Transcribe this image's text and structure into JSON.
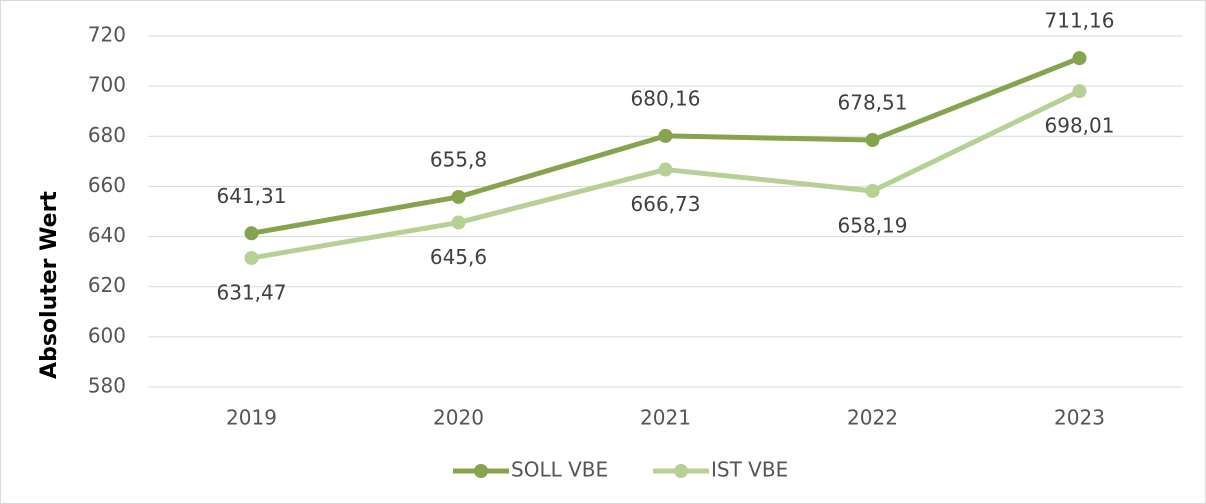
{
  "chart_data": {
    "type": "line",
    "y_axis_label": "Absoluter Wert",
    "categories": [
      "2019",
      "2020",
      "2021",
      "2022",
      "2023"
    ],
    "series": [
      {
        "name": "SOLL VBE",
        "color": "#86a34d",
        "values": [
          641.31,
          655.8,
          680.16,
          678.51,
          711.16
        ],
        "value_labels": [
          "641,31",
          "655,8",
          "680,16",
          "678,51",
          "711,16"
        ]
      },
      {
        "name": "IST VBE",
        "color": "#b7d096",
        "values": [
          631.47,
          645.6,
          666.73,
          658.19,
          698.01
        ],
        "value_labels": [
          "631,47",
          "645,6",
          "666,73",
          "658,19",
          "698,01"
        ]
      }
    ],
    "ylim": [
      580,
      720
    ],
    "yticks": [
      580,
      600,
      620,
      640,
      660,
      680,
      700,
      720
    ],
    "grid": true,
    "legend": "bottom"
  }
}
